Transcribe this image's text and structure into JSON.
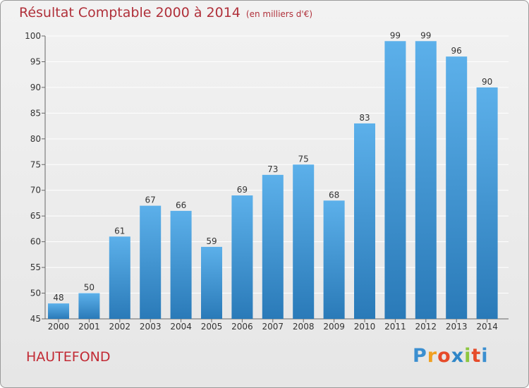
{
  "header": {
    "title": "Résultat Comptable 2000 à 2014",
    "unit": "(en milliers d'€)"
  },
  "footer": {
    "place": "HAUTEFOND",
    "logo": "Proxiti",
    "logo_colors": [
      "#3b8fd0",
      "#f0a020",
      "#e64b2a",
      "#2f86c8",
      "#8cc63f",
      "#e64b2a",
      "#3b8fd0"
    ]
  },
  "colors": {
    "title": "#b0303a",
    "bar_top": "#5cb0ea",
    "bar_bottom": "#2a7ab8",
    "grid": "#ffffff",
    "axis": "#666666"
  },
  "chart_data": {
    "type": "bar",
    "title": "Résultat Comptable 2000 à 2014",
    "categories": [
      "2000",
      "2001",
      "2002",
      "2003",
      "2004",
      "2005",
      "2006",
      "2007",
      "2008",
      "2009",
      "2010",
      "2011",
      "2012",
      "2013",
      "2014"
    ],
    "values": [
      48,
      50,
      61,
      67,
      66,
      59,
      69,
      73,
      75,
      68,
      83,
      99,
      99,
      96,
      90
    ],
    "ylim": [
      45,
      100
    ],
    "yticks": [
      45,
      50,
      55,
      60,
      65,
      70,
      75,
      80,
      85,
      90,
      95,
      100
    ],
    "grid": true,
    "data_labels": true
  }
}
